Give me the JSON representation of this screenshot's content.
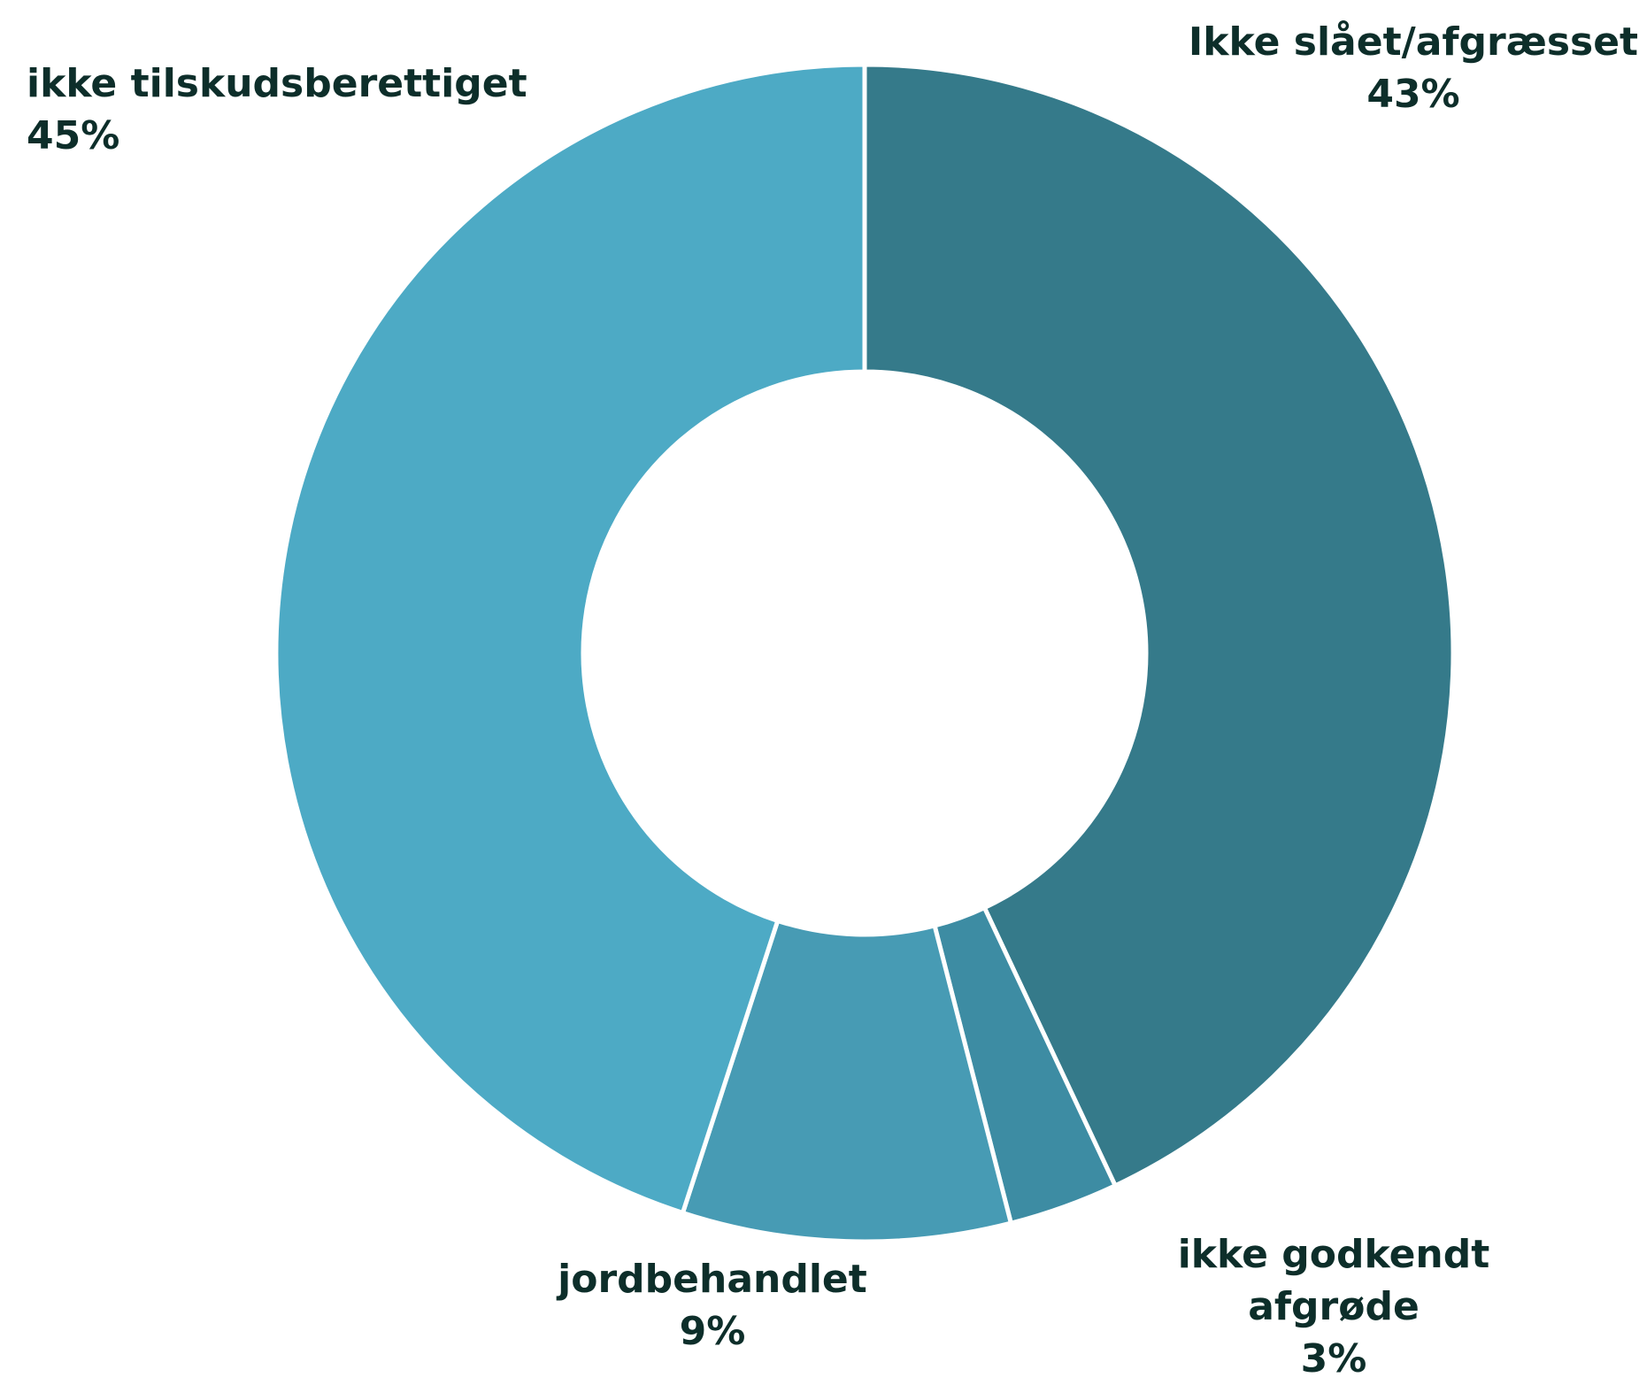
{
  "chart_data": {
    "type": "donut",
    "categories": [
      "Ikke slået/afgræsset",
      "ikke godkendt afgrøde",
      "jordbehandlet",
      "ikke tilskudsberettiget"
    ],
    "values": [
      43,
      3,
      9,
      45
    ],
    "value_labels": [
      "43%",
      "3%",
      "9%",
      "45%"
    ],
    "colors": [
      "#357a8a",
      "#3d8ca3",
      "#479bb4",
      "#4daac5"
    ]
  }
}
